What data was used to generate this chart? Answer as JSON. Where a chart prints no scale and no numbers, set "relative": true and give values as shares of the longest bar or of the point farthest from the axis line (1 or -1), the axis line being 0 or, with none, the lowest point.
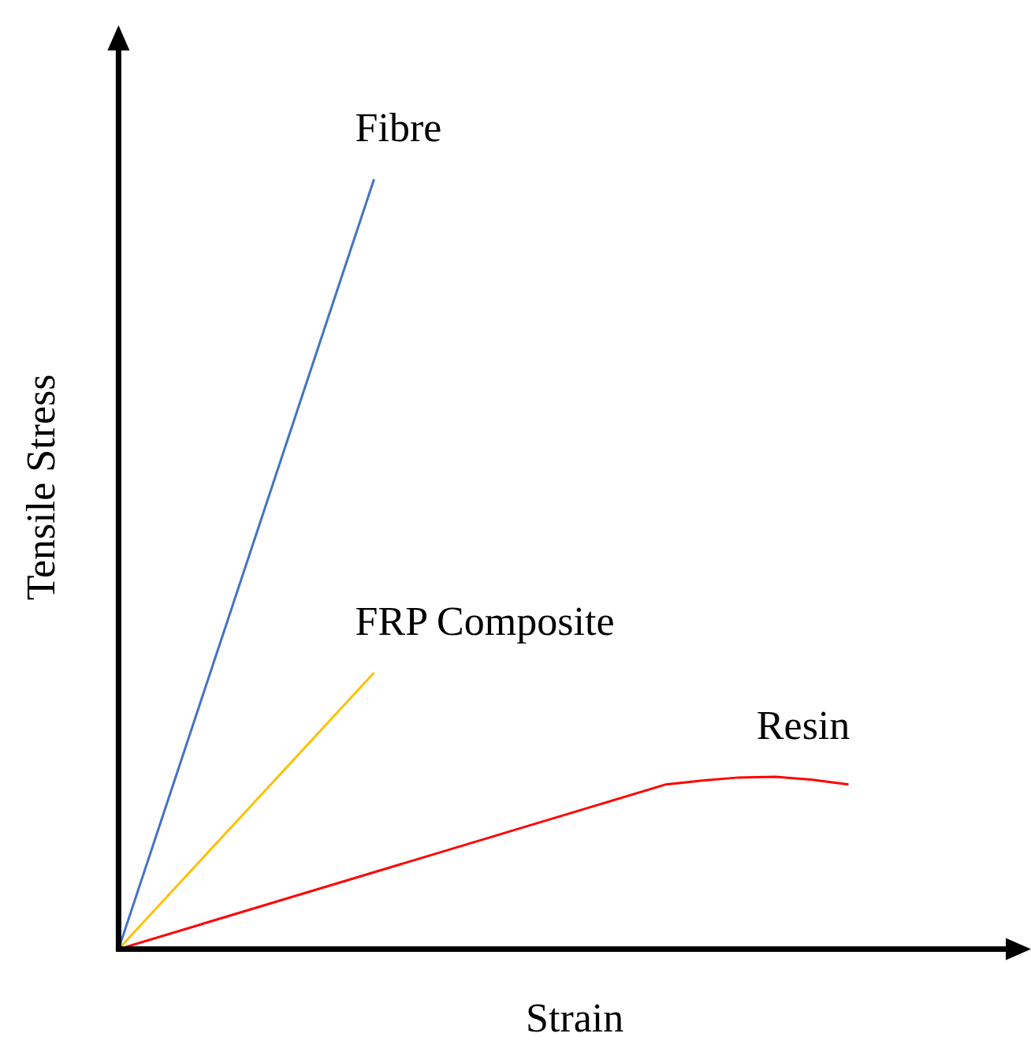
{
  "chart_data": {
    "type": "line",
    "relative": true,
    "xlabel": "Strain",
    "ylabel": "Tensile Stress",
    "grid": false,
    "legend": false,
    "marker": "none",
    "line_style": "solid",
    "categories": [
      null,
      null,
      null,
      null,
      null,
      null,
      null,
      null,
      null,
      null,
      null,
      null,
      null,
      null,
      null,
      null,
      null,
      null,
      null,
      null,
      null,
      null,
      null,
      null,
      null,
      null
    ],
    "series": [
      {
        "name": "Fibre",
        "color": "#4472c4",
        "values": [
          0,
          null,
          null,
          null,
          null,
          null,
          null,
          1,
          null,
          null,
          null,
          null,
          null,
          null,
          null,
          null,
          null,
          null,
          null,
          null,
          null,
          null,
          null,
          null,
          null,
          null
        ]
      },
      {
        "name": "FRP Composite",
        "color": "#ffc000",
        "values": [
          0,
          null,
          null,
          null,
          null,
          null,
          null,
          0.359,
          null,
          null,
          null,
          null,
          null,
          null,
          null,
          null,
          null,
          null,
          null,
          null,
          null,
          null,
          null,
          null,
          null,
          null
        ]
      },
      {
        "name": "Resin",
        "color": "#ff0000",
        "values": [
          0,
          null,
          null,
          null,
          null,
          null,
          null,
          null,
          null,
          null,
          null,
          null,
          null,
          null,
          null,
          0.214,
          0.219,
          0.223,
          0.224,
          0.22,
          0.214,
          null,
          null,
          null,
          null,
          null
        ]
      }
    ]
  }
}
